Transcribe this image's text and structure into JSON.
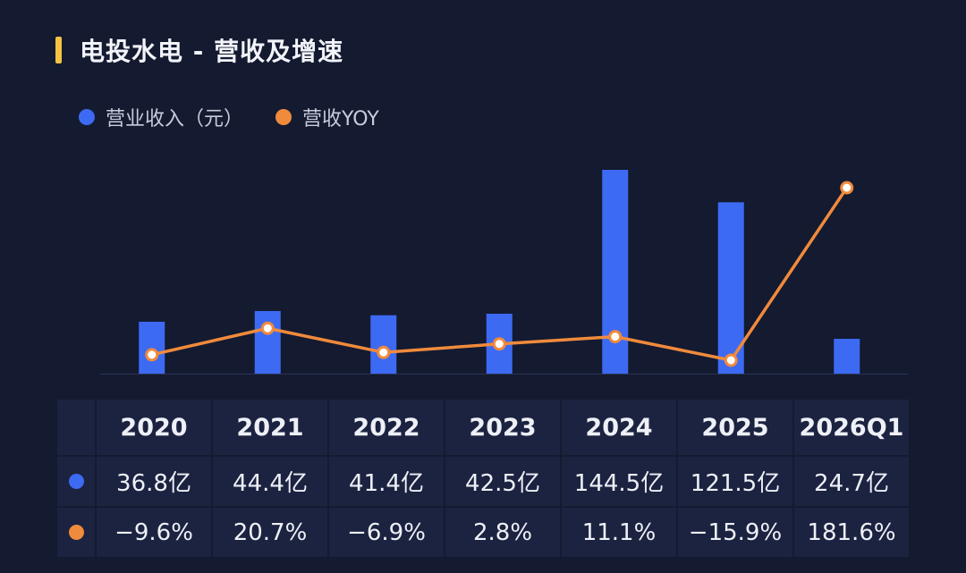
{
  "title": "电投水电 - 营收及增速",
  "colors": {
    "revenue": "#3d6af2",
    "yoy": "#f08a3c",
    "accent": "#f5c243"
  },
  "legend": [
    {
      "label": "营业收入（元）",
      "color": "#3d6af2"
    },
    {
      "label": "营收YOY",
      "color": "#f08a3c"
    }
  ],
  "chart_data": {
    "type": "bar",
    "categories": [
      "2020",
      "2021",
      "2022",
      "2023",
      "2024",
      "2025",
      "2026Q1"
    ],
    "series": [
      {
        "name": "营业收入（元）",
        "type": "bar",
        "values": [
          36.8,
          44.4,
          41.4,
          42.5,
          144.5,
          121.5,
          24.7
        ],
        "unit": "亿"
      },
      {
        "name": "营收YOY",
        "type": "line",
        "values": [
          -9.6,
          20.7,
          -6.9,
          2.8,
          11.1,
          -15.9,
          181.6
        ],
        "unit": "%"
      }
    ],
    "grid": false,
    "legend_position": "top-left"
  },
  "table": {
    "headers": [
      "2020",
      "2021",
      "2022",
      "2023",
      "2024",
      "2025",
      "2026Q1"
    ],
    "revenue_row": [
      "36.8亿",
      "44.4亿",
      "41.4亿",
      "42.5亿",
      "144.5亿",
      "121.5亿",
      "24.7亿"
    ],
    "yoy_row": [
      "−9.6%",
      "20.7%",
      "−6.9%",
      "2.8%",
      "11.1%",
      "−15.9%",
      "181.6%"
    ]
  }
}
